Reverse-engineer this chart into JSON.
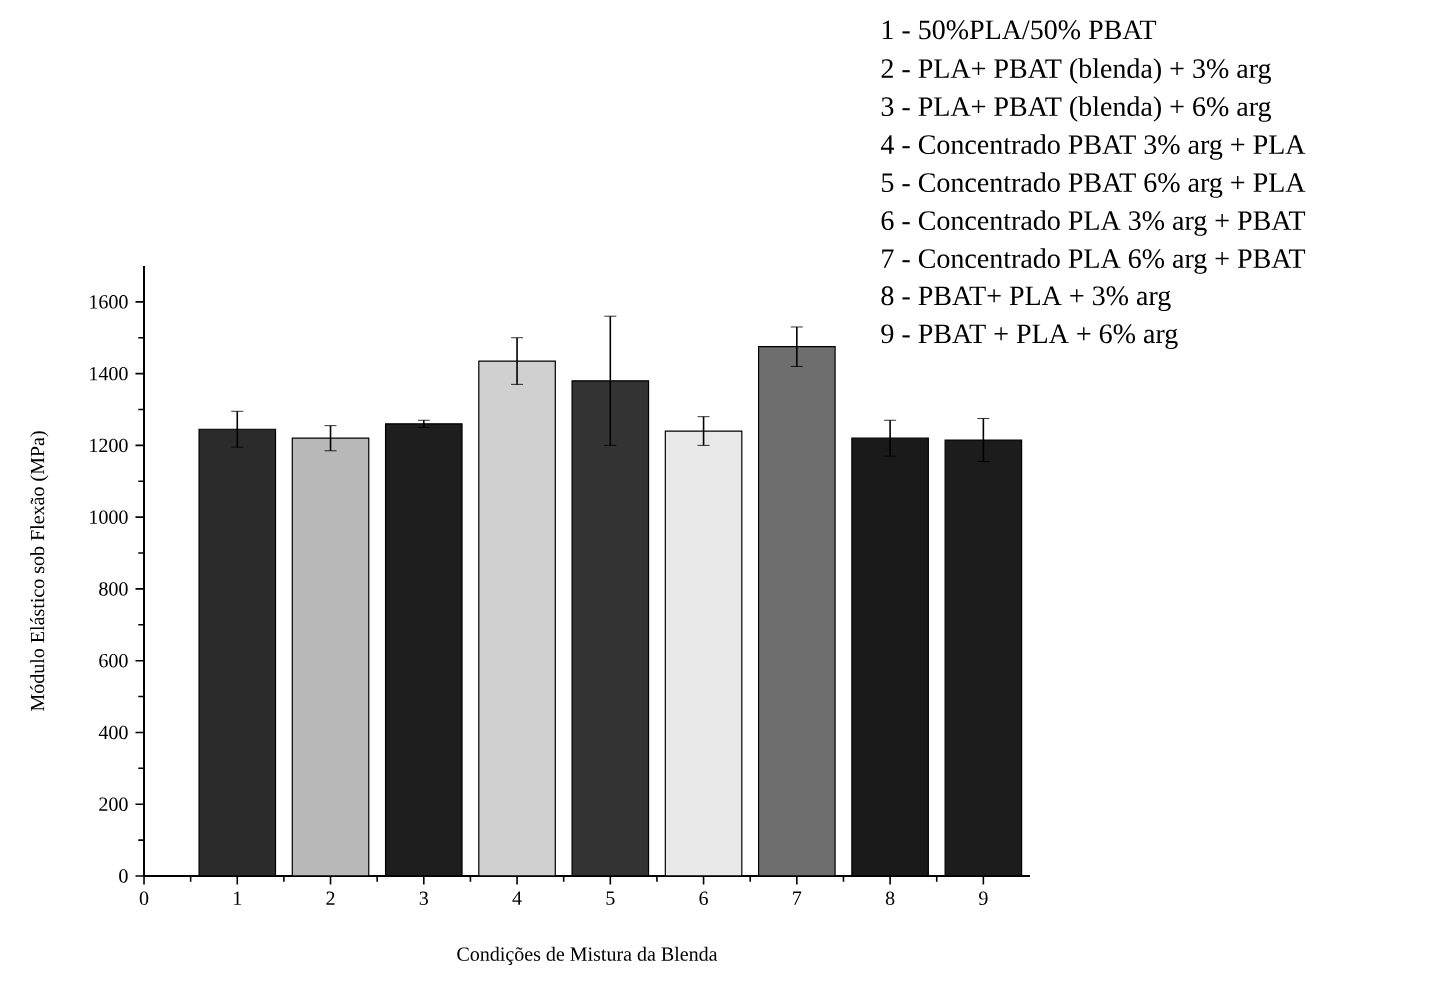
{
  "chart_data": {
    "type": "bar",
    "xlabel": "Condições de Mistura da Blenda",
    "ylabel": "Módulo Elástico sob Flexão (MPa)",
    "x": [
      1,
      2,
      3,
      4,
      5,
      6,
      7,
      8,
      9
    ],
    "values": [
      1245,
      1220,
      1260,
      1435,
      1380,
      1240,
      1475,
      1220,
      1215
    ],
    "errors": [
      50,
      35,
      10,
      65,
      180,
      40,
      55,
      50,
      60
    ],
    "colors": [
      "#2b2b2b",
      "#b8b8b8",
      "#1e1e1e",
      "#d0d0d0",
      "#333333",
      "#e8e8e8",
      "#6e6e6e",
      "#1a1a1a",
      "#1c1c1c"
    ],
    "xlim": [
      0,
      9.5
    ],
    "ylim": [
      0,
      1700
    ],
    "xticks": [
      0,
      1,
      2,
      3,
      4,
      5,
      6,
      7,
      8,
      9
    ],
    "yticks": [
      0,
      200,
      400,
      600,
      800,
      1000,
      1200,
      1400,
      1600
    ],
    "annotations": [
      "1 - 50%PLA/50% PBAT",
      "2 - PLA+ PBAT (blenda) + 3% arg",
      "3 - PLA+ PBAT (blenda) + 6% arg",
      "4 - Concentrado PBAT 3% arg + PLA",
      "5 - Concentrado PBAT 6% arg + PLA",
      "6 - Concentrado PLA 3% arg + PBAT",
      "7 - Concentrado PLA 6% arg + PBAT",
      "8 - PBAT+ PLA + 3% arg",
      "9 - PBAT + PLA + 6% arg"
    ]
  }
}
